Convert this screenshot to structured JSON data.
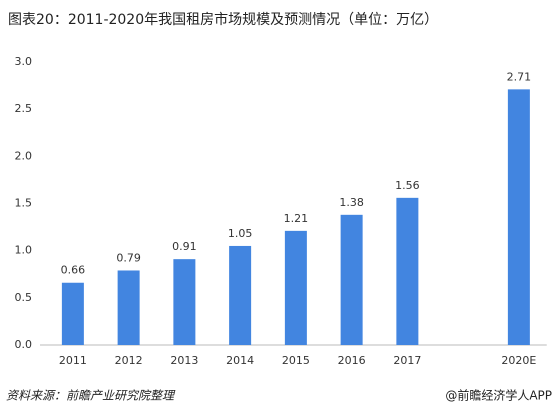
{
  "chart_data": {
    "type": "bar",
    "title": "图表20：2011-2020年我国租房市场规模及预测情况（单位：万亿）",
    "categories": [
      "2011",
      "2012",
      "2013",
      "2014",
      "2015",
      "2016",
      "2017",
      null,
      "2020E"
    ],
    "values": [
      0.66,
      0.79,
      0.91,
      1.05,
      1.21,
      1.38,
      1.56,
      null,
      2.71
    ],
    "color": "#4285e0",
    "ylim": [
      0,
      3
    ],
    "yticks": [
      {
        "value": 0,
        "label": "0.0"
      },
      0.5,
      {
        "value": 1,
        "label": "1.0"
      },
      1.5,
      {
        "value": 2,
        "label": "2.0"
      },
      2.5,
      {
        "value": 3,
        "label": "3.0"
      }
    ],
    "grid": false
  },
  "footer": {
    "source": "资料来源：前瞻产业研究院整理",
    "brand": "@前瞻经济学人APP"
  }
}
